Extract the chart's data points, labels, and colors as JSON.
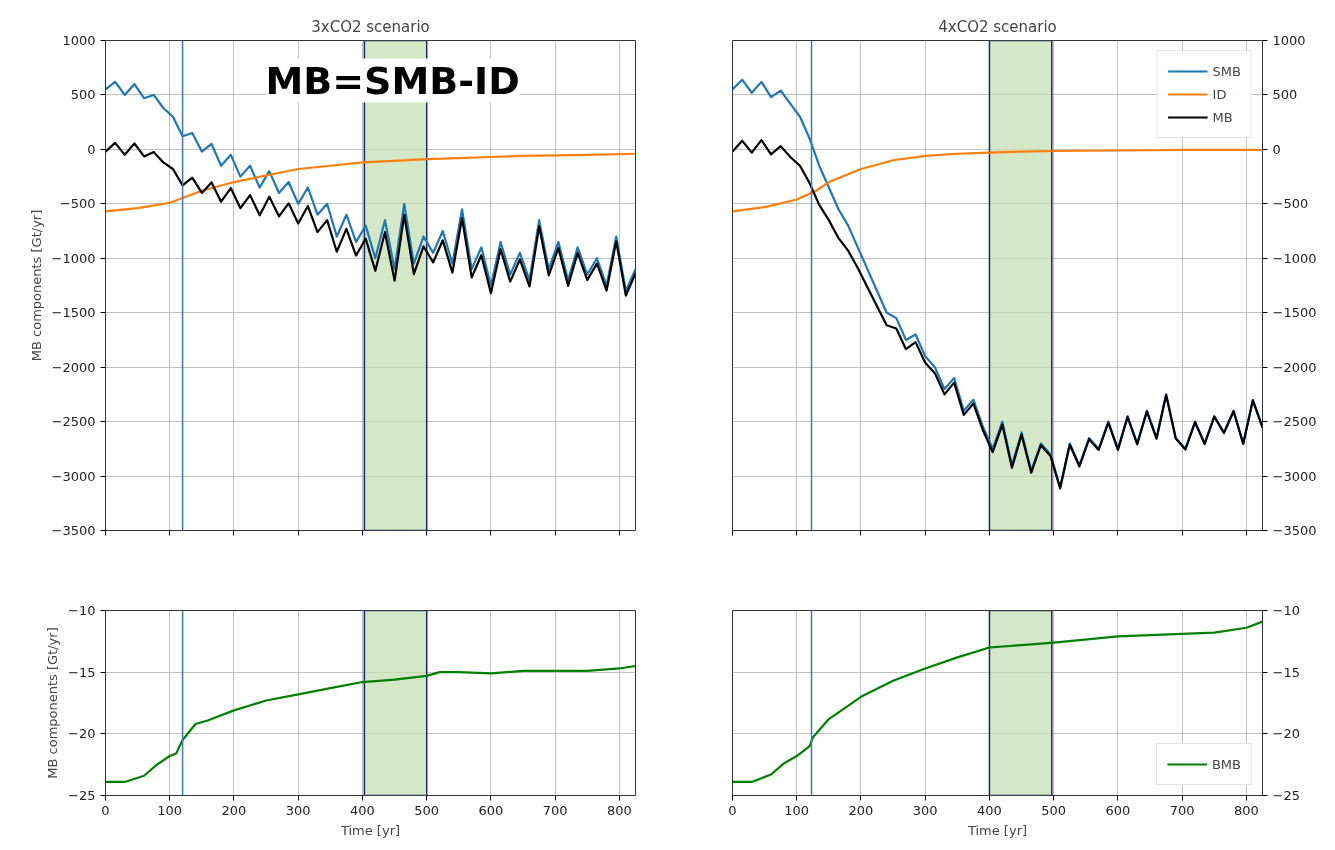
{
  "chart_data": [
    {
      "type": "line",
      "title": "3xCO2 scenario",
      "ylabel": "MB components [Gt/yr]",
      "xlim": [
        0,
        825
      ],
      "ylim": [
        -3500,
        1000
      ],
      "yticks": [
        -3500,
        -3000,
        -2500,
        -2000,
        -1500,
        -1000,
        -500,
        0,
        500,
        1000
      ],
      "xticks": [
        0,
        100,
        200,
        300,
        400,
        500,
        600,
        700,
        800
      ],
      "tick_labels": "y",
      "grid": true,
      "legend": false,
      "x": [
        0,
        15,
        30,
        45,
        60,
        75,
        90,
        105,
        120,
        135,
        150,
        165,
        180,
        195,
        210,
        225,
        240,
        255,
        270,
        285,
        300,
        315,
        330,
        345,
        360,
        375,
        390,
        405,
        420,
        435,
        450,
        465,
        480,
        495,
        510,
        525,
        540,
        555,
        570,
        585,
        600,
        615,
        630,
        645,
        660,
        675,
        690,
        705,
        720,
        735,
        750,
        765,
        780,
        795,
        810,
        825
      ],
      "series": [
        {
          "color": "#1f77b4",
          "values": [
            550,
            620,
            500,
            600,
            470,
            500,
            380,
            300,
            120,
            150,
            -20,
            50,
            -150,
            -50,
            -250,
            -150,
            -350,
            -200,
            -400,
            -300,
            -500,
            -350,
            -600,
            -500,
            -800,
            -600,
            -850,
            -700,
            -1000,
            -650,
            -1100,
            -500,
            -1050,
            -800,
            -950,
            -750,
            -1050,
            -550,
            -1100,
            -900,
            -1250,
            -850,
            -1150,
            -950,
            -1200,
            -650,
            -1100,
            -850,
            -1200,
            -900,
            -1150,
            -1000,
            -1250,
            -800,
            -1300,
            -1100
          ]
        },
        {
          "color": "#ff7f0e",
          "x": [
            0,
            50,
            100,
            150,
            200,
            250,
            300,
            350,
            400,
            450,
            500,
            550,
            600,
            650,
            700,
            750,
            825
          ],
          "values": [
            -570,
            -540,
            -490,
            -380,
            -300,
            -240,
            -180,
            -150,
            -120,
            -105,
            -90,
            -80,
            -70,
            -60,
            -55,
            -50,
            -40
          ]
        },
        {
          "color": "#000000",
          "values": [
            -20,
            60,
            -50,
            55,
            -65,
            -25,
            -120,
            -180,
            -330,
            -260,
            -400,
            -305,
            -480,
            -355,
            -540,
            -420,
            -605,
            -435,
            -615,
            -495,
            -680,
            -520,
            -760,
            -650,
            -940,
            -730,
            -975,
            -820,
            -1115,
            -760,
            -1205,
            -600,
            -1145,
            -890,
            -1038,
            -835,
            -1132,
            -630,
            -1176,
            -972,
            -1320,
            -917,
            -1214,
            -1011,
            -1259,
            -708,
            -1156,
            -905,
            -1253,
            -951,
            -1200,
            -1048,
            -1296,
            -844,
            -1342,
            -1140
          ]
        }
      ],
      "ref_lines": [
        {
          "axis": "x",
          "value": 120,
          "color": "#4472c4"
        }
      ],
      "bands": [
        {
          "axis": "x",
          "from": 403,
          "to": 500,
          "color": "#c6e0b4"
        }
      ],
      "annotations": [
        "MB=SMB-ID"
      ]
    },
    {
      "type": "line",
      "title": "4xCO2 scenario",
      "xlim": [
        0,
        825
      ],
      "ylim": [
        -3500,
        1000
      ],
      "yticks": [
        -3500,
        -3000,
        -2500,
        -2000,
        -1500,
        -1000,
        -500,
        0,
        500,
        1000
      ],
      "xticks": [
        0,
        100,
        200,
        300,
        400,
        500,
        600,
        700,
        800
      ],
      "tick_labels": "y",
      "grid": true,
      "legend": "top right",
      "x": [
        0,
        15,
        30,
        45,
        60,
        75,
        90,
        105,
        120,
        135,
        150,
        165,
        180,
        195,
        210,
        225,
        240,
        255,
        270,
        285,
        300,
        315,
        330,
        345,
        360,
        375,
        390,
        405,
        420,
        435,
        450,
        465,
        480,
        495,
        510,
        525,
        540,
        555,
        570,
        585,
        600,
        615,
        630,
        645,
        660,
        675,
        690,
        705,
        720,
        735,
        750,
        765,
        780,
        795,
        810,
        825
      ],
      "series": [
        {
          "name": "SMB",
          "color": "#1f77b4",
          "values": [
            550,
            640,
            520,
            620,
            480,
            540,
            420,
            300,
            100,
            -150,
            -350,
            -550,
            -700,
            -900,
            -1100,
            -1300,
            -1500,
            -1550,
            -1750,
            -1700,
            -1900,
            -2000,
            -2200,
            -2100,
            -2400,
            -2300,
            -2550,
            -2750,
            -2500,
            -2900,
            -2600,
            -2950,
            -2700,
            -2800,
            -3100,
            -2700,
            -2900,
            -2650,
            -2750,
            -2500,
            -2750,
            -2450,
            -2700,
            -2400,
            -2650,
            -2250,
            -2650,
            -2750,
            -2500,
            -2700,
            -2450,
            -2600,
            -2400,
            -2700,
            -2300,
            -2550
          ]
        },
        {
          "name": "ID",
          "color": "#ff7f0e",
          "x": [
            0,
            50,
            100,
            130,
            150,
            200,
            250,
            300,
            350,
            400,
            450,
            500,
            600,
            700,
            825
          ],
          "values": [
            -570,
            -530,
            -460,
            -380,
            -300,
            -180,
            -100,
            -60,
            -40,
            -30,
            -20,
            -15,
            -10,
            -5,
            -5
          ]
        },
        {
          "name": "MB",
          "color": "#000000",
          "values": [
            -20,
            80,
            -30,
            85,
            -45,
            30,
            -70,
            -150,
            -310,
            -510,
            -650,
            -815,
            -930,
            -1090,
            -1265,
            -1440,
            -1615,
            -1645,
            -1835,
            -1770,
            -1960,
            -2055,
            -2250,
            -2142,
            -2438,
            -2335,
            -2582,
            -2780,
            -2527,
            -2924,
            -2620,
            -2969,
            -2717,
            -2815,
            -3114,
            -2713,
            -2912,
            -2662,
            -2760,
            -2510,
            -2760,
            -2458,
            -2708,
            -2407,
            -2657,
            -2256,
            -2656,
            -2756,
            -2506,
            -2705,
            -2455,
            -2605,
            -2405,
            -2705,
            -2305,
            -2555
          ]
        }
      ],
      "ref_lines": [
        {
          "axis": "x",
          "value": 123,
          "color": "#4472c4"
        }
      ],
      "bands": [
        {
          "axis": "x",
          "from": 400,
          "to": 497,
          "color": "#c6e0b4"
        }
      ]
    },
    {
      "type": "line",
      "xlabel": "Time [yr]",
      "ylabel": "MB components [Gt/yr]",
      "xlim": [
        0,
        825
      ],
      "ylim": [
        -25,
        -10
      ],
      "yticks": [
        -25,
        -20,
        -15,
        -10
      ],
      "xticks": [
        0,
        100,
        200,
        300,
        400,
        500,
        600,
        700,
        800
      ],
      "grid": true,
      "legend": false,
      "x": [
        0,
        30,
        60,
        80,
        100,
        110,
        120,
        140,
        160,
        200,
        250,
        300,
        350,
        400,
        450,
        500,
        520,
        550,
        600,
        650,
        700,
        750,
        800,
        825
      ],
      "series": [
        {
          "color": "#008000",
          "values": [
            -23.9,
            -23.9,
            -23.4,
            -22.5,
            -21.8,
            -21.6,
            -20.5,
            -19.2,
            -18.9,
            -18.1,
            -17.3,
            -16.8,
            -16.3,
            -15.8,
            -15.6,
            -15.3,
            -15.0,
            -15.0,
            -15.1,
            -14.9,
            -14.9,
            -14.9,
            -14.7,
            -14.5
          ]
        }
      ],
      "ref_lines": [
        {
          "axis": "x",
          "value": 120,
          "color": "#4472c4"
        }
      ],
      "bands": [
        {
          "axis": "x",
          "from": 403,
          "to": 500,
          "color": "#c6e0b4"
        }
      ]
    },
    {
      "type": "line",
      "xlabel": "Time [yr]",
      "xlim": [
        0,
        825
      ],
      "ylim": [
        -25,
        -10
      ],
      "yticks": [
        -25,
        -20,
        -15,
        -10
      ],
      "xticks": [
        0,
        100,
        200,
        300,
        400,
        500,
        600,
        700,
        800
      ],
      "grid": true,
      "legend": "bottom right",
      "x": [
        0,
        30,
        60,
        80,
        100,
        120,
        125,
        150,
        200,
        250,
        300,
        350,
        400,
        450,
        500,
        600,
        700,
        750,
        800,
        825
      ],
      "series": [
        {
          "name": "BMB",
          "color": "#008000",
          "values": [
            -23.9,
            -23.9,
            -23.3,
            -22.4,
            -21.8,
            -21.0,
            -20.3,
            -18.8,
            -17.0,
            -15.7,
            -14.7,
            -13.8,
            -13.0,
            -12.8,
            -12.6,
            -12.1,
            -11.9,
            -11.8,
            -11.4,
            -10.9
          ]
        }
      ],
      "ref_lines": [
        {
          "axis": "x",
          "value": 123,
          "color": "#4472c4"
        }
      ],
      "bands": [
        {
          "axis": "x",
          "from": 400,
          "to": 497,
          "color": "#c6e0b4"
        }
      ]
    }
  ]
}
